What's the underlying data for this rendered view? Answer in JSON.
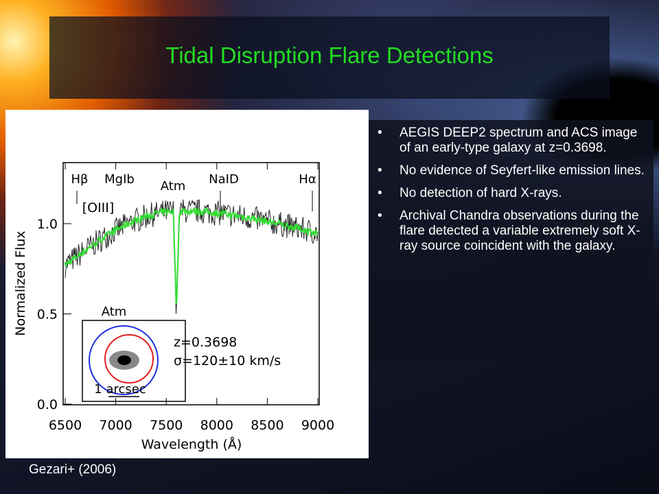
{
  "title": "Tidal Disruption Flare Detections",
  "bullets": [
    "AEGIS DEEP2 spectrum and ACS image of an early-type galaxy at z=0.3698.",
    "No evidence of Seyfert-like emission lines.",
    "No detection of hard X-rays.",
    "Archival Chandra observations during the flare detected a variable extremely soft X-ray source coincident with the galaxy."
  ],
  "citation": "Gezari+ (2006)",
  "figure": {
    "x_label": "Wavelength (Å)",
    "y_label": "Normalized Flux",
    "x_ticks": [
      "6500",
      "7000",
      "7500",
      "8000",
      "8500",
      "9000"
    ],
    "y_ticks": [
      "0.0",
      "0.5",
      "1.0"
    ],
    "line_labels": [
      "Hβ",
      "MgIb",
      "Atm",
      "NaID",
      "Hα"
    ],
    "annotations": [
      "[OIII]",
      "Atm",
      "z=0.3698",
      "σ=120±10 km/s",
      "1 arcsec"
    ]
  }
}
